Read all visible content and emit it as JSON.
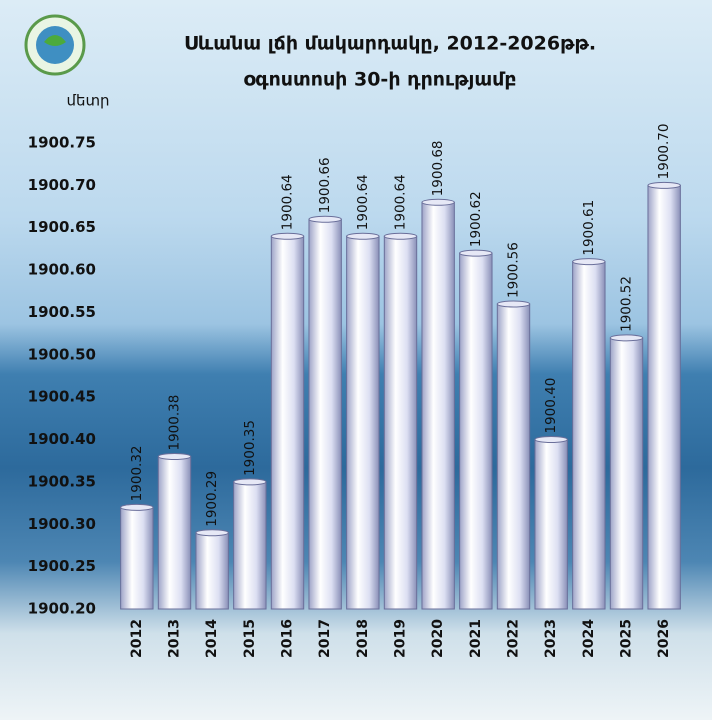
{
  "chart_data": {
    "type": "bar",
    "title": "Սևանա լճի մակարդակը, 2012-2026թթ.",
    "subtitle": "օգոստոսի 30-ի դրությամբ",
    "y_label": "մետր",
    "categories": [
      "2012",
      "2013",
      "2014",
      "2015",
      "2016",
      "2017",
      "2018",
      "2019",
      "2020",
      "2021",
      "2022",
      "2023",
      "2024",
      "2025",
      "2026"
    ],
    "values": [
      1900.32,
      1900.38,
      1900.29,
      1900.35,
      1900.64,
      1900.66,
      1900.64,
      1900.64,
      1900.68,
      1900.62,
      1900.56,
      1900.4,
      1900.61,
      1900.52,
      1900.7
    ],
    "value_labels": [
      "1900.32",
      "1900.38",
      "1900.29",
      "1900.35",
      "1900.64",
      "1900.66",
      "1900.64",
      "1900.64",
      "1900.68",
      "1900.62",
      "1900.56",
      "1900.40",
      "1900.61",
      "1900.52",
      "1900.70"
    ],
    "color": "#e6e8f6",
    "ylim": [
      1900.2,
      1900.75
    ],
    "yticks": [
      {
        "value": 1900.2,
        "label": "1900.20"
      },
      {
        "value": 1900.25,
        "label": "1900.25"
      },
      {
        "value": 1900.3,
        "label": "1900.30"
      },
      {
        "value": 1900.35,
        "label": "1900.35"
      },
      {
        "value": 1900.4,
        "label": "1900.40"
      },
      {
        "value": 1900.45,
        "label": "1900.45"
      },
      {
        "value": 1900.5,
        "label": "1900.50"
      },
      {
        "value": 1900.55,
        "label": "1900.55"
      },
      {
        "value": 1900.6,
        "label": "1900.60"
      },
      {
        "value": 1900.65,
        "label": "1900.65"
      },
      {
        "value": 1900.7,
        "label": "1900.70"
      },
      {
        "value": 1900.75,
        "label": "1900.75"
      }
    ]
  }
}
